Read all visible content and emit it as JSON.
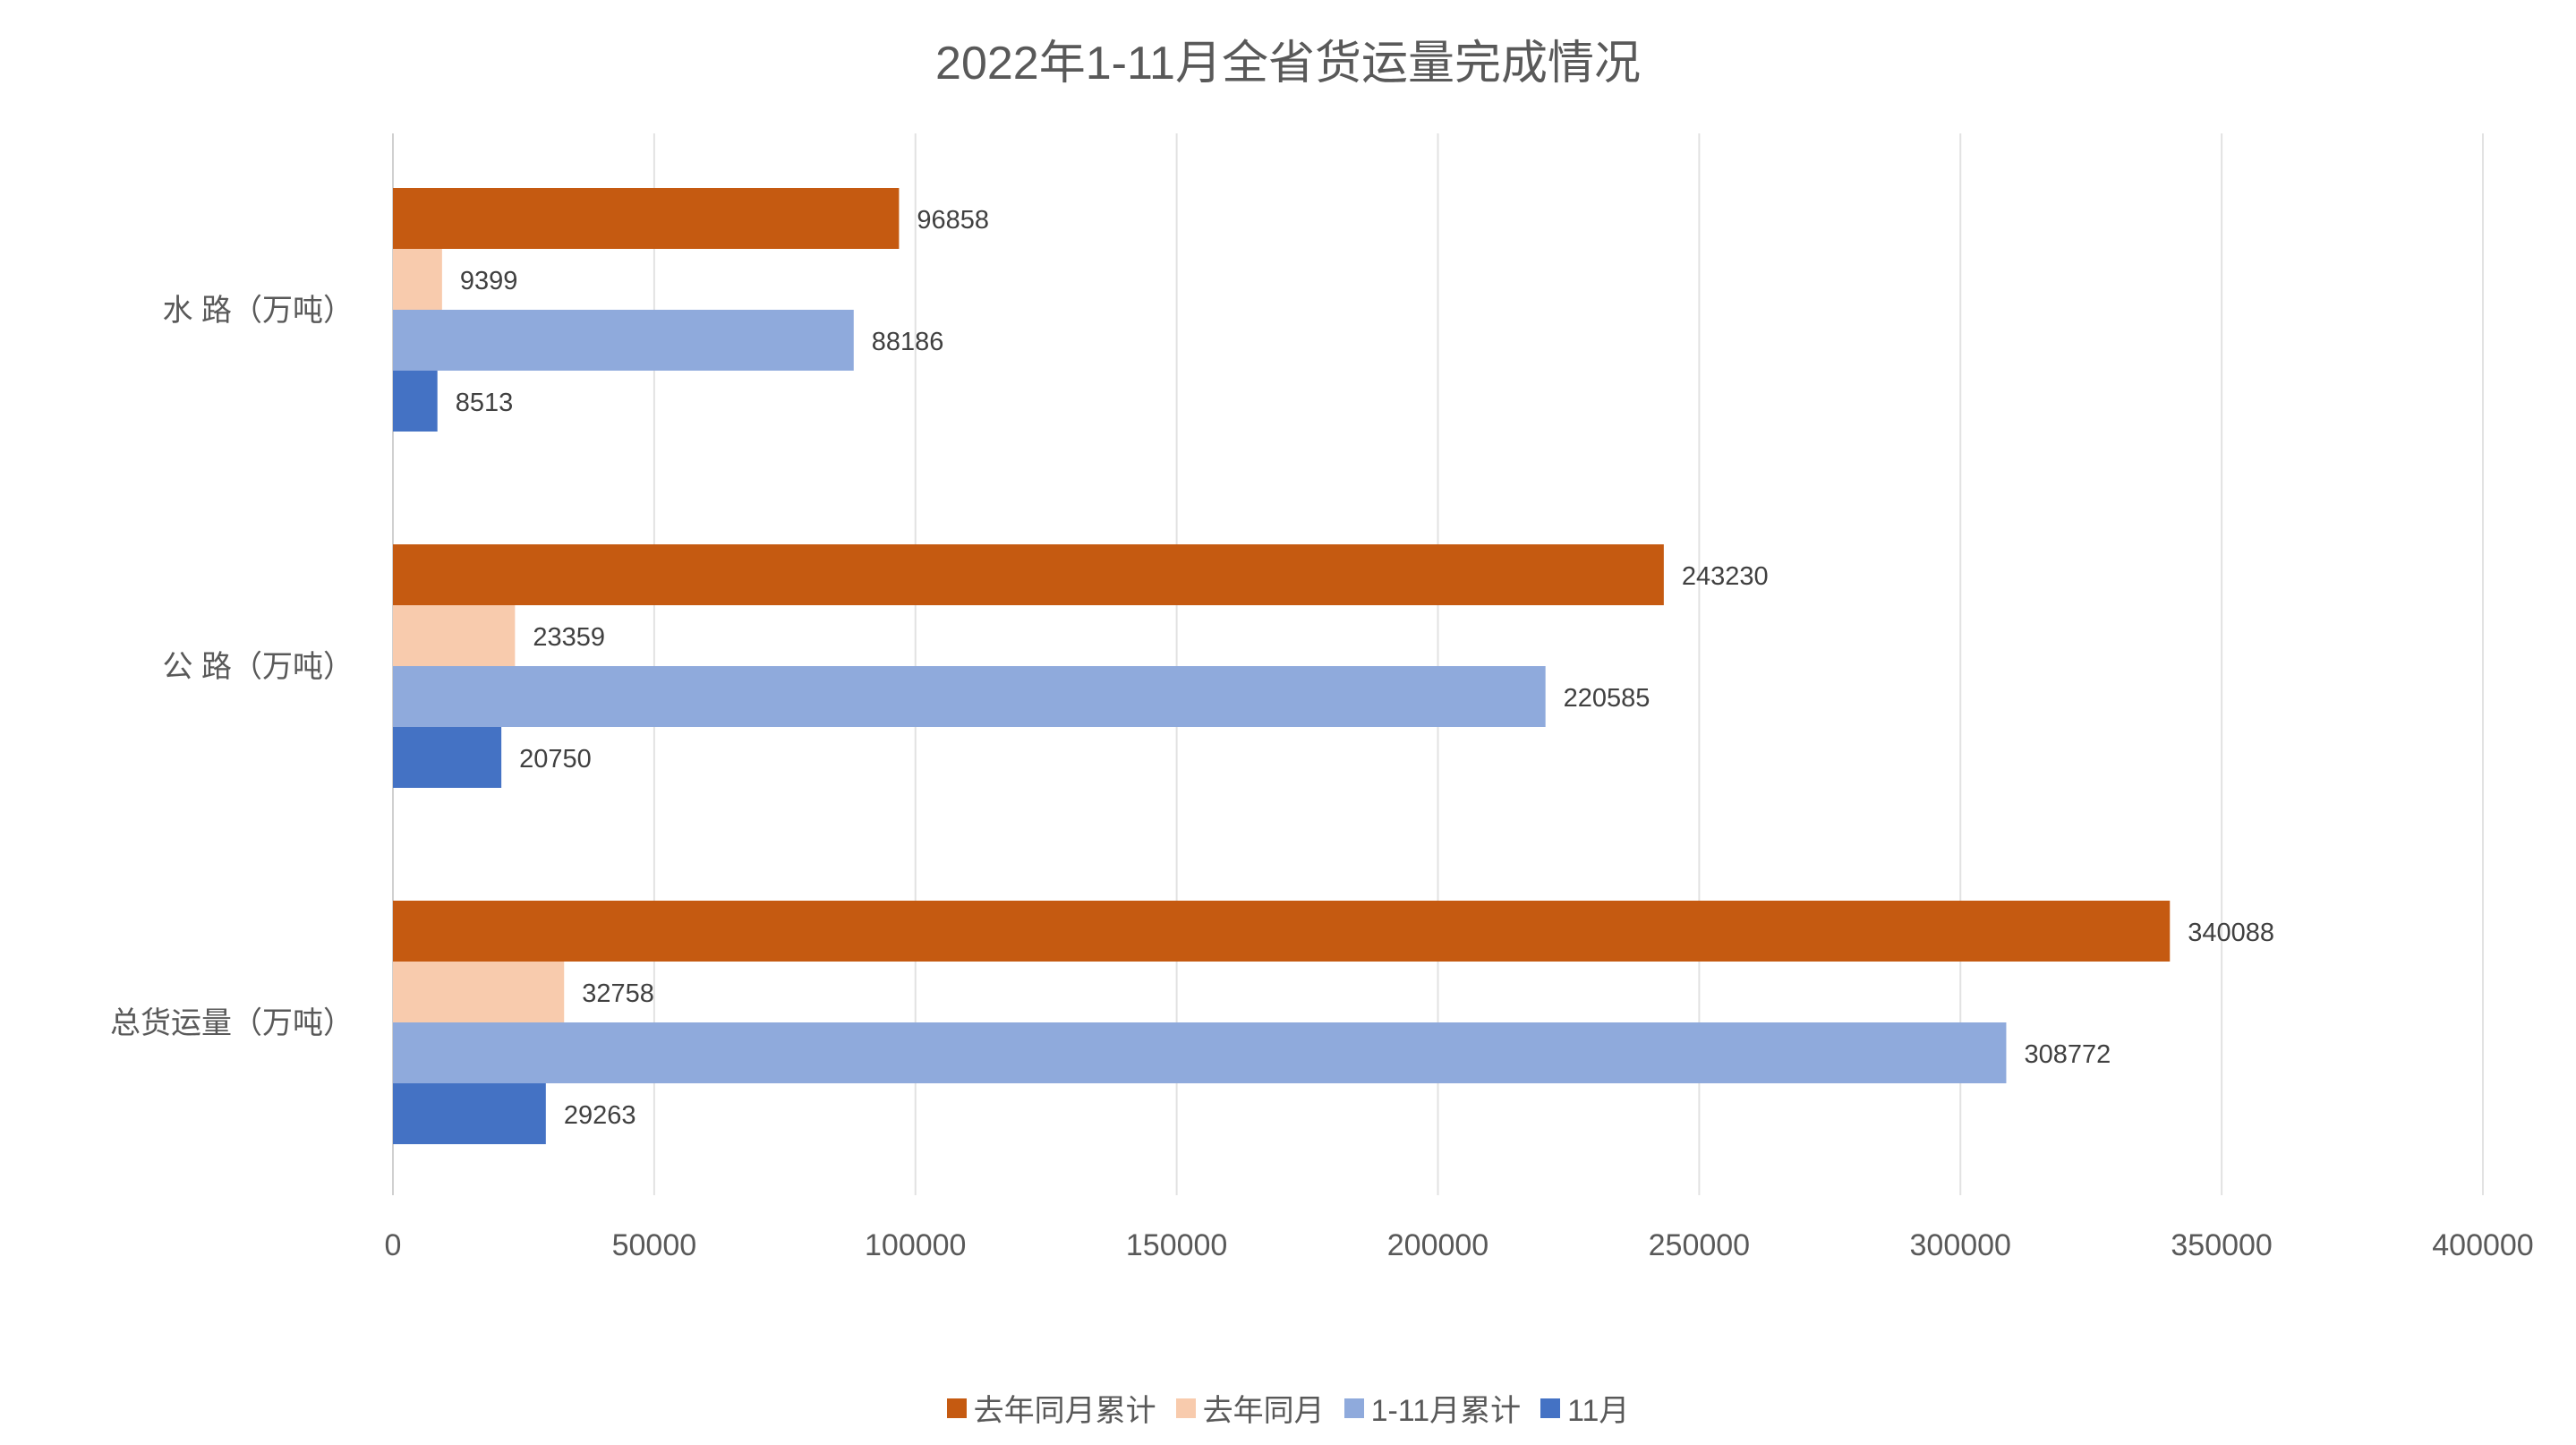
{
  "chart_data": {
    "type": "bar",
    "orientation": "horizontal",
    "title": "2022年1-11月全省货运量完成情况",
    "categories": [
      "水 路（万吨）",
      "公 路（万吨）",
      "总货运量（万吨）"
    ],
    "series": [
      {
        "name": "去年同月累计",
        "color": "#C55A11",
        "values": [
          96858,
          243230,
          340088
        ]
      },
      {
        "name": "去年同月",
        "color": "#F8CBAD",
        "values": [
          9399,
          23359,
          32758
        ]
      },
      {
        "name": "1-11月累计",
        "color": "#8FAADC",
        "values": [
          88186,
          220585,
          308772
        ]
      },
      {
        "name": "11月",
        "color": "#4472C4",
        "values": [
          8513,
          20750,
          29263
        ]
      }
    ],
    "xlim": [
      0,
      400000
    ],
    "xticks": [
      "0",
      "50000",
      "100000",
      "150000",
      "200000",
      "250000",
      "300000",
      "350000",
      "400000"
    ],
    "xlabel": "",
    "ylabel": "",
    "grid": true,
    "legend_position": "bottom"
  }
}
